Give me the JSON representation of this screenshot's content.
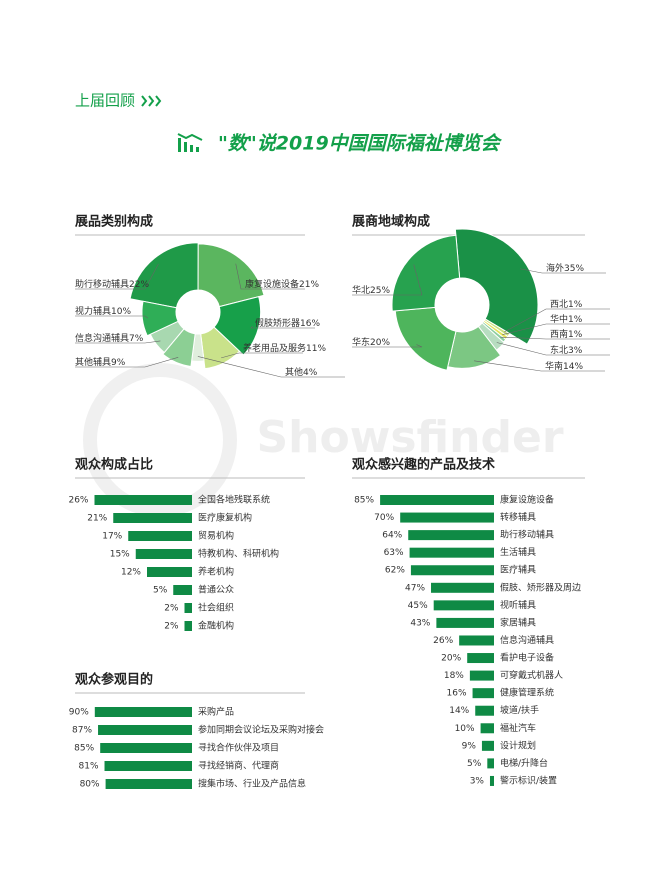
{
  "header": {
    "section": "上届回顾",
    "title": "\"数\"说2019中国国际福祉博览会"
  },
  "watermark": "Showsfinder",
  "chart_data": [
    {
      "type": "pie",
      "title": "展品类别构成",
      "categories": [
        "助行移动辅具",
        "康复设施设备",
        "假肢矫形器",
        "养老用品及服务",
        "其他",
        "其他辅具",
        "信息沟通辅具",
        "视力辅具"
      ],
      "values": [
        22,
        21,
        16,
        11,
        4,
        9,
        7,
        10
      ],
      "value_labels": [
        "22%",
        "21%",
        "16%",
        "11%",
        "4%",
        "9%",
        "7%",
        "10%"
      ],
      "colors": [
        "#1f9a48",
        "#5bb65f",
        "#17a04a",
        "#c9e28a",
        "#e0eedd",
        "#8ccf94",
        "#a8d8b0",
        "#2fae57"
      ]
    },
    {
      "type": "pie",
      "title": "展商地域构成",
      "categories": [
        "海外",
        "西北",
        "华中",
        "西南",
        "东北",
        "华南",
        "华东",
        "华北"
      ],
      "values": [
        35,
        1,
        1,
        1,
        3,
        14,
        20,
        25
      ],
      "value_labels": [
        "35%",
        "1%",
        "1%",
        "1%",
        "3%",
        "14%",
        "20%",
        "25%"
      ],
      "colors": [
        "#1a9147",
        "#c8e07a",
        "#e5e35a",
        "#8bcf9e",
        "#b7ddc0",
        "#7cc783",
        "#4eb55c",
        "#27a24f"
      ]
    },
    {
      "type": "bar",
      "title": "观众构成占比",
      "categories": [
        "全国各地残联系统",
        "医疗康复机构",
        "贸易机构",
        "特教机构、科研机构",
        "养老机构",
        "普通公众",
        "社会组织",
        "金融机构"
      ],
      "values": [
        26,
        21,
        17,
        15,
        12,
        5,
        2,
        2
      ],
      "value_labels": [
        "26%",
        "21%",
        "17%",
        "15%",
        "12%",
        "5%",
        "2%",
        "2%"
      ],
      "color": "#0f8a45"
    },
    {
      "type": "bar",
      "title": "观众感兴趣的产品及技术",
      "categories": [
        "康复设施设备",
        "转移辅具",
        "助行移动辅具",
        "生活辅具",
        "医疗辅具",
        "假肢、矫形器及周边",
        "视听辅具",
        "家居辅具",
        "信息沟通辅具",
        "看护电子设备",
        "可穿戴式机器人",
        "健康管理系统",
        "坡道/扶手",
        "福祉汽车",
        "设计规划",
        "电梯/升降台",
        "警示标识/装置"
      ],
      "values": [
        85,
        70,
        64,
        63,
        62,
        47,
        45,
        43,
        26,
        20,
        18,
        16,
        14,
        10,
        9,
        5,
        3
      ],
      "value_labels": [
        "85%",
        "70%",
        "64%",
        "63%",
        "62%",
        "47%",
        "45%",
        "43%",
        "26%",
        "20%",
        "18%",
        "16%",
        "14%",
        "10%",
        "9%",
        "5%",
        "3%"
      ],
      "color": "#0f8a45"
    },
    {
      "type": "bar",
      "title": "观众参观目的",
      "categories": [
        "采购产品",
        "参加同期会议论坛及采购对接会",
        "寻找合作伙伴及项目",
        "寻找经销商、代理商",
        "搜集市场、行业及产品信息"
      ],
      "values": [
        90,
        87,
        85,
        81,
        80
      ],
      "value_labels": [
        "90%",
        "87%",
        "85%",
        "81%",
        "80%"
      ],
      "color": "#0f8a45"
    }
  ]
}
